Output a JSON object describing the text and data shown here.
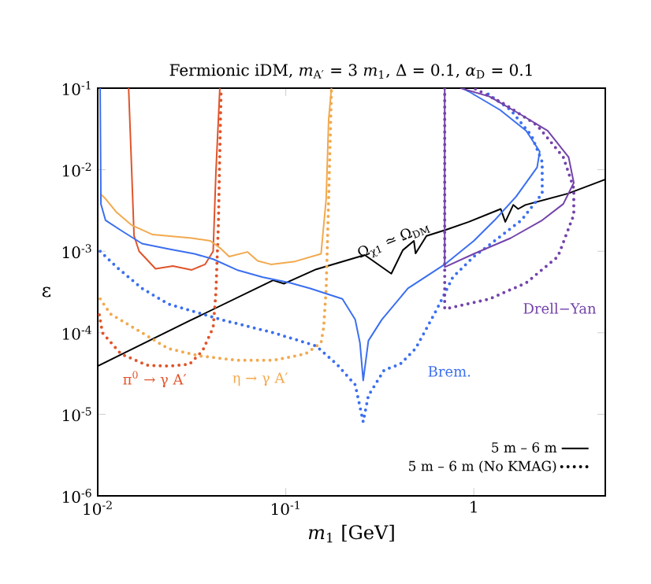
{
  "chart_data": {
    "type": "line",
    "title": "Fermionic iDM, *m*$_{A′}$ = 3 *m*$_{1}$, Δ = 0.1, *α*$_{D}$ = 0.1",
    "xlabel": "*m*$_{1}$ [GeV]",
    "ylabel": "ε",
    "log": "xy",
    "xlim": [
      0.01,
      5
    ],
    "ylim": [
      1e-06,
      0.1
    ],
    "xticks": [
      {
        "value": 0.01,
        "label": "10$^{-2}$"
      },
      {
        "value": 0.1,
        "label": "10$^{-1}$"
      },
      1
    ],
    "yticks": [
      {
        "value": 1e-06,
        "label": "10$^{-6}$"
      },
      {
        "value": 1e-05,
        "label": "10$^{-5}$"
      },
      {
        "value": 0.0001,
        "label": "10$^{-4}$"
      },
      {
        "value": 0.001,
        "label": "10$^{-3}$"
      },
      {
        "value": 0.01,
        "label": "10$^{-2}$"
      },
      {
        "value": 0.1,
        "label": "10$^{-1}$"
      }
    ],
    "legend": "bottom right",
    "series": [
      {
        "color": "#000000",
        "line_style": "solid",
        "x": [
          0.01,
          0.0307,
          0.0856,
          0.098,
          0.145,
          0.263,
          0.364,
          0.419,
          0.48,
          0.49,
          0.56,
          0.71,
          0.94,
          1.39,
          1.47,
          1.62,
          1.72,
          1.88,
          3.17,
          5.0
        ],
        "values": [
          3.9e-05,
          0.00014,
          0.00044,
          0.0004,
          0.0006,
          0.0009,
          0.00053,
          0.00103,
          0.00134,
          0.00094,
          0.00154,
          0.00183,
          0.00229,
          0.0033,
          0.00229,
          0.0037,
          0.0033,
          0.0037,
          0.0051,
          0.0076
        ]
      },
      {
        "color": "#e0542a",
        "line_style": "solid",
        "x": [
          0.0146,
          0.0151,
          0.0156,
          0.0166,
          0.0203,
          0.0251,
          0.0316,
          0.0372,
          0.0411,
          0.0425,
          0.0446
        ],
        "values": [
          0.1,
          0.0124,
          0.00155,
          0.001,
          0.00061,
          0.00066,
          0.00059,
          0.00069,
          0.001,
          0.0092,
          0.1
        ]
      },
      {
        "color": "#e0542a",
        "line_style": "dotted",
        "x": [
          0.0102,
          0.0106,
          0.0133,
          0.0183,
          0.0237,
          0.0307,
          0.0361,
          0.0411,
          0.0425,
          0.0438,
          0.0453
        ],
        "values": [
          0.000166,
          0.0001,
          5.5e-05,
          4e-05,
          3.9e-05,
          4.1e-05,
          6e-05,
          0.000116,
          0.00031,
          0.0021,
          0.1
        ]
      },
      {
        "color": "#f2a94e",
        "line_style": "solid",
        "x": [
          0.0103,
          0.011,
          0.0126,
          0.0151,
          0.0196,
          0.0316,
          0.0397,
          0.0453,
          0.05,
          0.0625,
          0.071,
          0.0834,
          0.112,
          0.154,
          0.164,
          0.169,
          0.175
        ],
        "values": [
          0.0051,
          0.0044,
          0.003,
          0.0021,
          0.0016,
          0.00145,
          0.00134,
          0.00107,
          0.00086,
          0.00098,
          0.00076,
          0.00069,
          0.00075,
          0.00093,
          0.0044,
          0.041,
          0.1
        ]
      },
      {
        "color": "#f2a94e",
        "line_style": "dotted",
        "x": [
          0.0103,
          0.0117,
          0.0172,
          0.0237,
          0.035,
          0.055,
          0.086,
          0.127,
          0.154,
          0.159,
          0.164,
          0.169,
          0.175
        ],
        "values": [
          0.00026,
          0.00017,
          0.0001,
          6.4e-05,
          5.2e-05,
          4.6e-05,
          4.6e-05,
          5.5e-05,
          7.5e-05,
          0.000116,
          0.00035,
          0.0044,
          0.1
        ]
      },
      {
        "color": "#3b6ff0",
        "line_style": "solid",
        "x": [
          0.0103,
          0.0104,
          0.011,
          0.0133,
          0.0172,
          0.0237,
          0.0327,
          0.0411,
          0.055,
          0.0756,
          0.105,
          0.135,
          0.2,
          0.234,
          0.248,
          0.258,
          0.275,
          0.324,
          0.446,
          0.7,
          1.0,
          1.29,
          1.68,
          2.17,
          2.24,
          1.9,
          1.38,
          0.94,
          0.87
        ],
        "values": [
          0.1,
          0.0038,
          0.0024,
          0.0018,
          0.00124,
          0.00107,
          0.00093,
          0.0008,
          0.00059,
          0.00048,
          0.00041,
          0.00035,
          0.00026,
          0.000145,
          7.5e-05,
          2.6e-05,
          8e-05,
          0.000145,
          0.00035,
          0.00069,
          0.00134,
          0.0024,
          0.0047,
          0.0107,
          0.0167,
          0.03,
          0.054,
          0.091,
          0.1
        ]
      },
      {
        "color": "#3b6ff0",
        "line_style": "dotted",
        "x": [
          0.0103,
          0.0126,
          0.0172,
          0.0237,
          0.0453,
          0.086,
          0.145,
          0.187,
          0.234,
          0.258,
          0.275,
          0.334,
          0.405,
          0.49,
          0.637,
          0.773,
          1.0,
          1.29,
          1.79,
          2.31,
          2.31,
          2.03,
          1.57,
          1.14
        ],
        "values": [
          0.001,
          0.00064,
          0.00035,
          0.000226,
          0.000145,
          0.0001,
          6.9e-05,
          4.1e-05,
          2.3e-05,
          8.1e-06,
          1.7e-05,
          3.5e-05,
          4.1e-05,
          6.4e-05,
          0.000196,
          0.00048,
          0.00086,
          0.00134,
          0.0024,
          0.0051,
          0.0124,
          0.026,
          0.054,
          0.091
        ]
      },
      {
        "color": "#7343aa",
        "line_style": "solid",
        "x": [
          0.7,
          0.7,
          1.0,
          1.57,
          2.31,
          2.99,
          3.4,
          3.19,
          2.47,
          1.79,
          1.21,
          0.85
        ],
        "values": [
          0.1,
          0.00064,
          0.00093,
          0.00145,
          0.0024,
          0.0038,
          0.0069,
          0.0143,
          0.03,
          0.047,
          0.079,
          0.1
        ]
      },
      {
        "color": "#7343aa",
        "line_style": "dotted",
        "x": [
          0.7,
          0.7,
          1.21,
          1.9,
          2.8,
          3.4,
          3.4,
          2.99,
          2.17,
          1.47,
          1.0
        ],
        "values": [
          0.1,
          0.000196,
          0.00026,
          0.00041,
          0.00086,
          0.0028,
          0.0059,
          0.0143,
          0.035,
          0.063,
          0.1
        ]
      },
      {
        "name": "5 m – 6 m",
        "color": "#000000",
        "line_style": "solid"
      },
      {
        "name": "5 m – 6 m  (No KMAG)",
        "color": "#000000",
        "line_style": "dotted"
      }
    ],
    "annotations": [
      "Ω$_{χ1}$ ≃ Ω$_{DM}$",
      "π$^{0}$ → γ A′",
      "η → γ A′",
      "Brem.",
      "Drell−Yan"
    ]
  }
}
